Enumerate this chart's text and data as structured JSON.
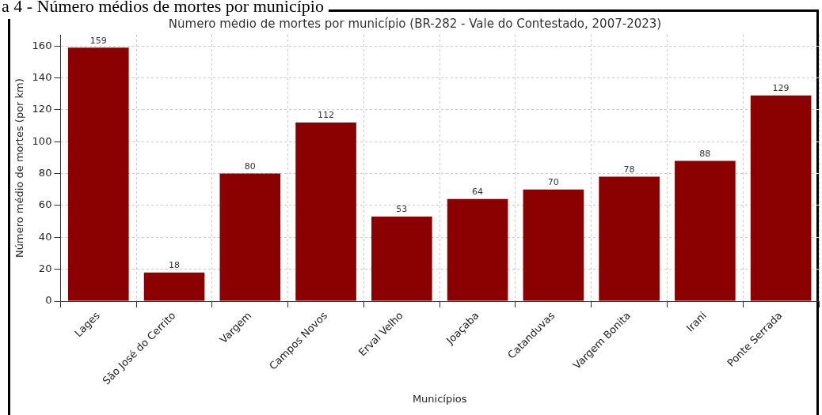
{
  "chart_data": {
    "type": "bar",
    "title": "Número médio de mortes por município (BR-282 - Vale do Contestado, 2007-2023)",
    "xlabel": "Municípios",
    "ylabel": "Número médio de mortes (por km)",
    "annotations": [
      "a 4 - Número médios de mortes por município"
    ],
    "categories": [
      "Lages",
      "São José do Cerrito",
      "Vargem",
      "Campos Novos",
      "Erval Velho",
      "Joaçaba",
      "Catanduvas",
      "Vargem Bonita",
      "Irani",
      "Ponte Serrada"
    ],
    "values": [
      159,
      18,
      80,
      112,
      53,
      64,
      70,
      78,
      88,
      129
    ],
    "color": "#8b0000",
    "ylim": [
      0,
      167
    ],
    "yticks": [
      0,
      20,
      40,
      60,
      80,
      100,
      120,
      140,
      160
    ],
    "grid": true,
    "data_labels": true
  }
}
